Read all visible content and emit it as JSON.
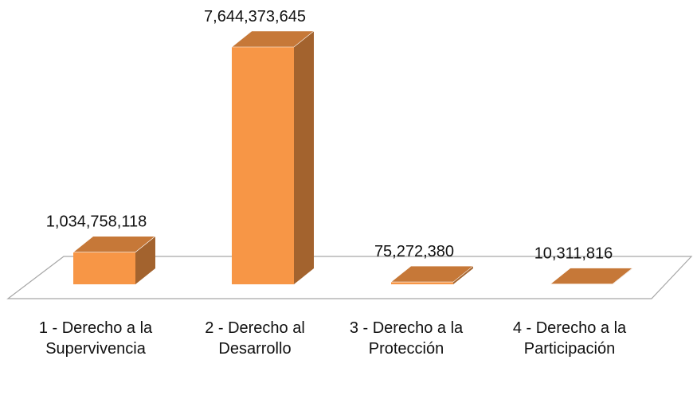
{
  "chart_data": {
    "type": "bar3d",
    "categories": [
      "1 - Derecho a la Supervivencia",
      "2 - Derecho al Desarrollo",
      "3 - Derecho a la Protección",
      "4 - Derecho a la Participación"
    ],
    "values": [
      1034758118,
      7644373645,
      75272380,
      10311816
    ],
    "value_labels": [
      "1,034,758,118",
      "7,644,373,645",
      "75,272,380",
      "10,311,816"
    ],
    "color": "#f79646"
  }
}
